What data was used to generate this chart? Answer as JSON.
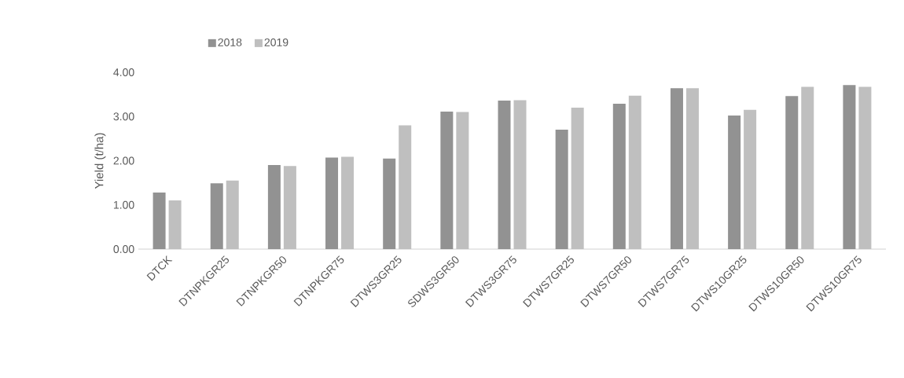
{
  "chart_data": {
    "type": "bar",
    "ylabel": "Yield (t/ha)",
    "categories": [
      "DTCK",
      "DTNPKGR25",
      "DTNPKGR50",
      "DTNPKGR75",
      "DTWS3GR25",
      "SDWS3GR50",
      "DTWS3GR75",
      "DTWS7GR25",
      "DTWS7GR50",
      "DTWS7GR75",
      "DTWS10GR25",
      "DTWS10GR50",
      "DTWS10GR75"
    ],
    "series": [
      {
        "name": "2018",
        "color": "#929292",
        "values": [
          1.28,
          1.49,
          1.9,
          2.07,
          2.05,
          3.11,
          3.36,
          2.7,
          3.29,
          3.64,
          3.02,
          3.46,
          3.71
        ]
      },
      {
        "name": "2019",
        "color": "#bfbfbf",
        "values": [
          1.1,
          1.55,
          1.88,
          2.09,
          2.8,
          3.1,
          3.37,
          3.2,
          3.47,
          3.64,
          3.15,
          3.67,
          3.67
        ]
      }
    ],
    "ylim": [
      0,
      4
    ],
    "yticks": [
      {
        "value": 0,
        "label": "0.00"
      },
      {
        "value": 1,
        "label": "1.00"
      },
      {
        "value": 2,
        "label": "2.00"
      },
      {
        "value": 3,
        "label": "3.00"
      },
      {
        "value": 4,
        "label": "4.00"
      }
    ],
    "legend": "top left"
  }
}
